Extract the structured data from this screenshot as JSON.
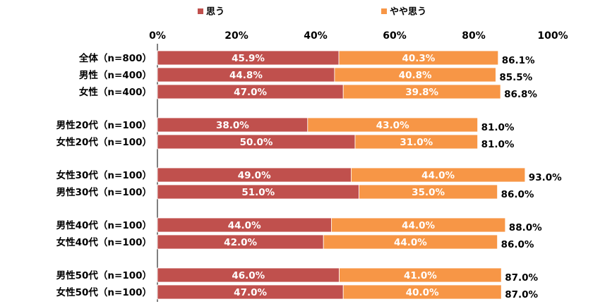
{
  "chart_data": {
    "type": "bar",
    "orientation": "horizontal",
    "stacked": true,
    "title": "",
    "xlabel": "",
    "ylabel": "",
    "xlim": [
      0,
      100
    ],
    "x_ticks": [
      "0%",
      "20%",
      "40%",
      "60%",
      "80%",
      "100%"
    ],
    "categories": [
      "全体（n=800）",
      "男性（n=400）",
      "女性（n=400）",
      "男性20代（n=100）",
      "女性20代（n=100）",
      "女性30代（n=100）",
      "男性30代（n=100）",
      "男性40代（n=100）",
      "女性40代（n=100）",
      "男性50代（n=100）",
      "女性50代（n=100）"
    ],
    "groups": [
      3,
      2,
      2,
      2,
      2
    ],
    "series": [
      {
        "name": "思う",
        "color": "#C0504D",
        "values": [
          45.9,
          44.8,
          47.0,
          38.0,
          50.0,
          49.0,
          51.0,
          44.0,
          42.0,
          46.0,
          47.0
        ],
        "labels": [
          "45.9%",
          "44.8%",
          "47.0%",
          "38.0%",
          "50.0%",
          "49.0%",
          "51.0%",
          "44.0%",
          "42.0%",
          "46.0%",
          "47.0%"
        ]
      },
      {
        "name": "やや思う",
        "color": "#F79646",
        "values": [
          40.3,
          40.8,
          39.8,
          43.0,
          31.0,
          44.0,
          35.0,
          44.0,
          44.0,
          41.0,
          40.0
        ],
        "labels": [
          "40.3%",
          "40.8%",
          "39.8%",
          "43.0%",
          "31.0%",
          "44.0%",
          "35.0%",
          "44.0%",
          "44.0%",
          "41.0%",
          "40.0%"
        ]
      }
    ],
    "totals": [
      "86.1%",
      "85.5%",
      "86.8%",
      "81.0%",
      "81.0%",
      "93.0%",
      "86.0%",
      "88.0%",
      "86.0%",
      "87.0%",
      "87.0%"
    ],
    "legend_position": "top"
  }
}
